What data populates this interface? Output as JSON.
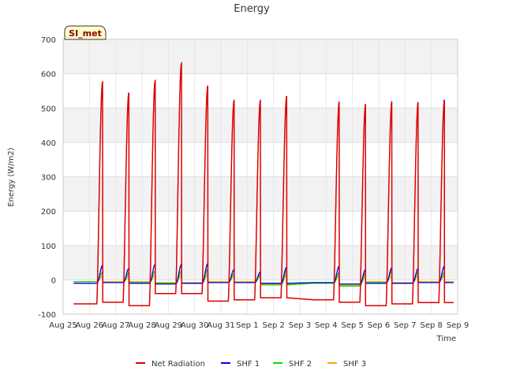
{
  "chart_data": {
    "type": "line",
    "title": "Energy",
    "xlabel": "Time",
    "ylabel": "Energy (W/m2)",
    "ylim": [
      -100,
      700
    ],
    "xlim": [
      0,
      15
    ],
    "yticks": [
      -100,
      0,
      100,
      200,
      300,
      400,
      500,
      600,
      700
    ],
    "x_tick_labels": [
      "Aug 25",
      "Aug 26",
      "Aug 27",
      "Aug 28",
      "Aug 29",
      "Aug 30",
      "Aug 31",
      "Sep 1",
      "Sep 2",
      "Sep 3",
      "Sep 4",
      "Sep 5",
      "Sep 6",
      "Sep 7",
      "Sep 8",
      "Sep 9"
    ],
    "site_label": "SI_met",
    "legend_position": "bottom-center",
    "grid": true,
    "days": [
      1,
      2,
      3,
      4,
      5,
      6,
      7,
      8,
      10,
      11,
      12,
      13,
      14
    ],
    "series": [
      {
        "name": "Net Radiation",
        "color": "#dd0000",
        "daily_peaks": [
          575,
          545,
          580,
          630,
          565,
          522,
          522,
          535,
          520,
          512,
          520,
          518,
          525
        ],
        "night_values": [
          -70,
          -65,
          -75,
          -40,
          -40,
          -62,
          -58,
          -52,
          -58,
          -65,
          -75,
          -70,
          -66
        ]
      },
      {
        "name": "SHF 1",
        "color": "#0000ee",
        "daily_peaks": [
          42,
          33,
          45,
          45,
          47,
          30,
          23,
          37,
          40,
          30,
          35,
          33,
          40
        ],
        "night_values": [
          -10,
          -8,
          -10,
          -12,
          -10,
          -8,
          -8,
          -10,
          -8,
          -12,
          -10,
          -10,
          -8
        ]
      },
      {
        "name": "SHF 2",
        "color": "#00dd00",
        "daily_peaks": [
          22,
          20,
          25,
          25,
          30,
          18,
          15,
          27,
          22,
          20,
          25,
          22,
          22
        ],
        "night_values": [
          -5,
          -8,
          -8,
          -10,
          -10,
          -8,
          -8,
          -15,
          -10,
          -18,
          -8,
          -10,
          -8
        ]
      },
      {
        "name": "SHF 3",
        "color": "#ffa500",
        "daily_peaks": [
          10,
          10,
          12,
          12,
          15,
          10,
          10,
          15,
          12,
          10,
          12,
          12,
          12
        ],
        "night_values": [
          -5,
          -5,
          -5,
          -8,
          -8,
          -5,
          -5,
          -12,
          -8,
          -15,
          -5,
          -8,
          -5
        ]
      }
    ]
  }
}
